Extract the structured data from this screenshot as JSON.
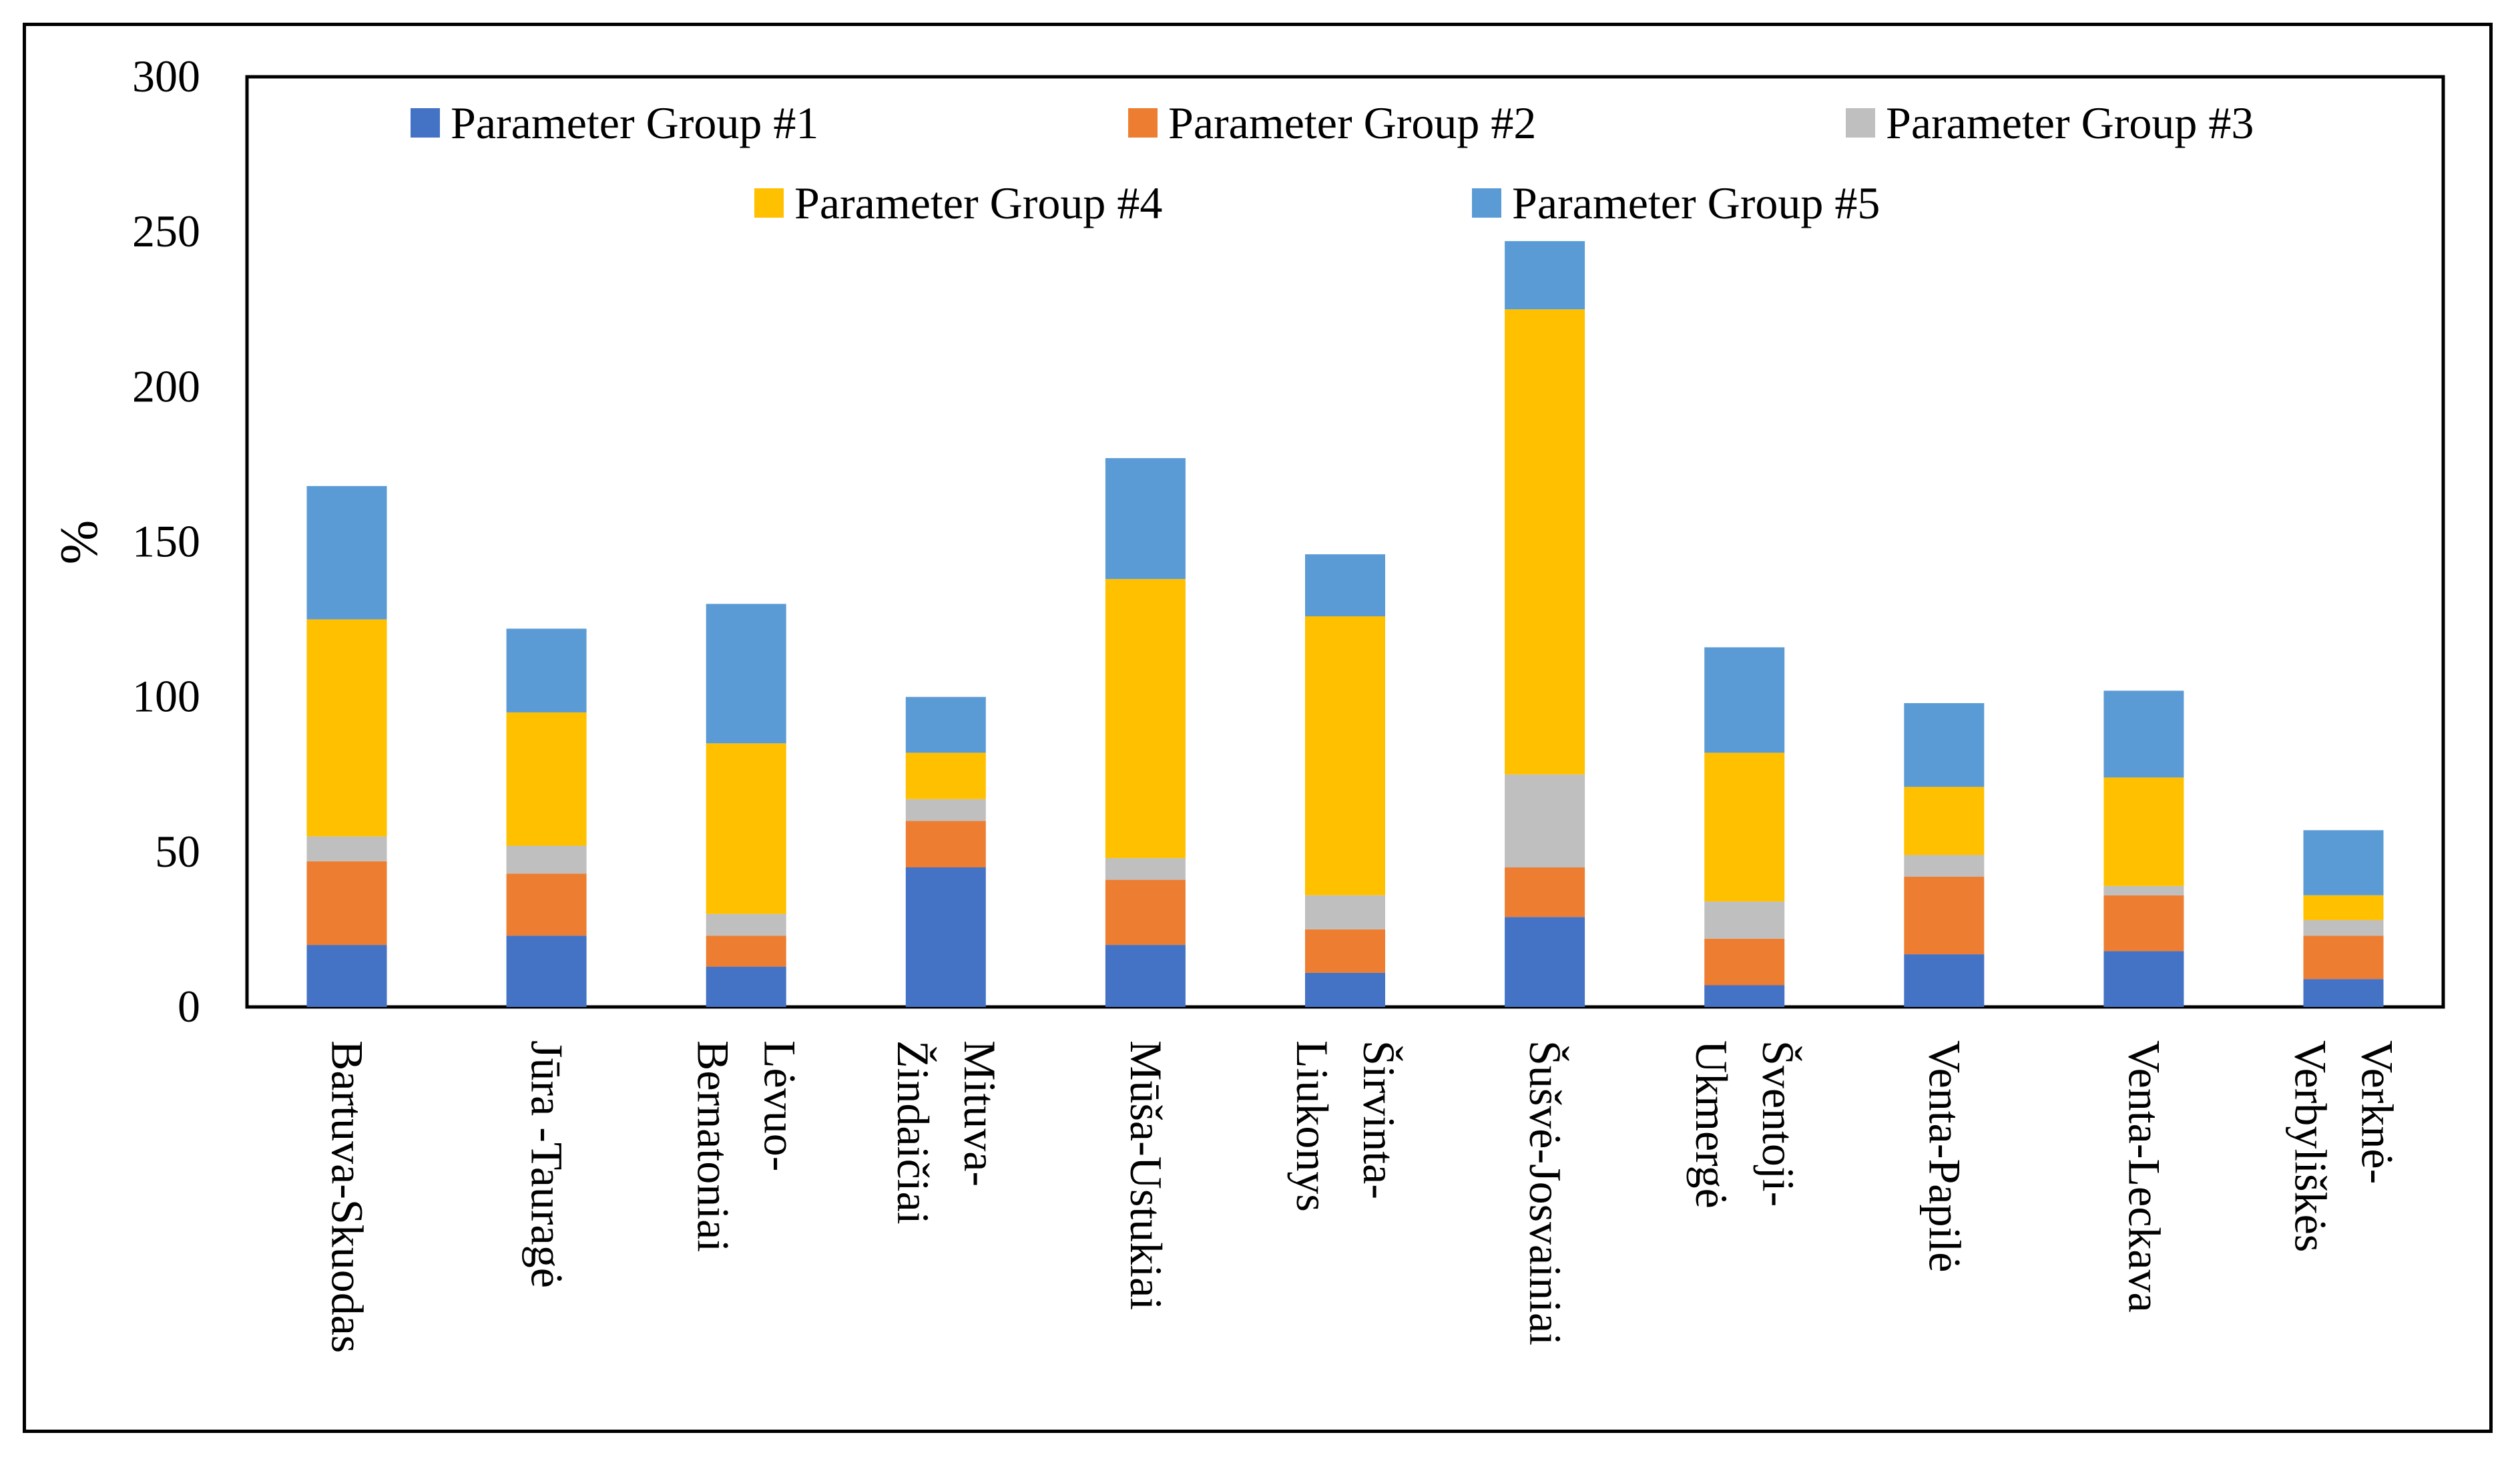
{
  "chart_data": {
    "type": "bar",
    "stacked": true,
    "ylabel": "%",
    "xlabel": "",
    "ylim": [
      0,
      300
    ],
    "yticks": [
      0,
      50,
      100,
      150,
      200,
      250,
      300
    ],
    "grid": false,
    "legend_position": "top",
    "categories": [
      "Bartuva-Skuodas",
      "Jūra -Tauragė",
      "Lėvuo-Bernatoniai",
      "Mituva-Žindaičiai",
      "Mūša-Ustukiai",
      "Širvinta-Liukonys",
      "Šušvė-Josvainiai",
      "Šventoji-Ukmergė",
      "Venta-Papilė",
      "Venta-Leckava",
      "Verknė-Verbyliškės"
    ],
    "category_lines": [
      [
        "Bartuva-Skuodas"
      ],
      [
        "Jūra -Tauragė"
      ],
      [
        "Lėvuo-",
        "Bernatoniai"
      ],
      [
        "Mituva-",
        "Žindaičiai"
      ],
      [
        "Mūša-Ustukiai"
      ],
      [
        "Širvinta-",
        "Liukonys"
      ],
      [
        "Šušvė-Josvainiai"
      ],
      [
        "Šventoji-",
        "Ukmergė"
      ],
      [
        "Venta-Papilė"
      ],
      [
        "Venta-Leckava"
      ],
      [
        "Verknė-",
        "Verbyliškės"
      ]
    ],
    "series": [
      {
        "name": "Parameter Group #1",
        "color": "#4472C4",
        "values": [
          20,
          23,
          13,
          45,
          20,
          11,
          29,
          7,
          17,
          18,
          9
        ]
      },
      {
        "name": "Parameter Group #2",
        "color": "#ED7D31",
        "values": [
          27,
          20,
          10,
          15,
          21,
          14,
          16,
          15,
          25,
          18,
          14
        ]
      },
      {
        "name": "Parameter Group #3",
        "color": "#BFBFBF",
        "values": [
          8,
          9,
          7,
          7,
          7,
          11,
          30,
          12,
          7,
          3,
          5
        ]
      },
      {
        "name": "Parameter Group #4",
        "color": "#FFC000",
        "values": [
          70,
          43,
          55,
          15,
          90,
          90,
          150,
          48,
          22,
          35,
          8
        ]
      },
      {
        "name": "Parameter Group #5",
        "color": "#5B9BD5",
        "values": [
          43,
          27,
          45,
          18,
          39,
          20,
          22,
          34,
          27,
          28,
          21
        ]
      }
    ]
  }
}
